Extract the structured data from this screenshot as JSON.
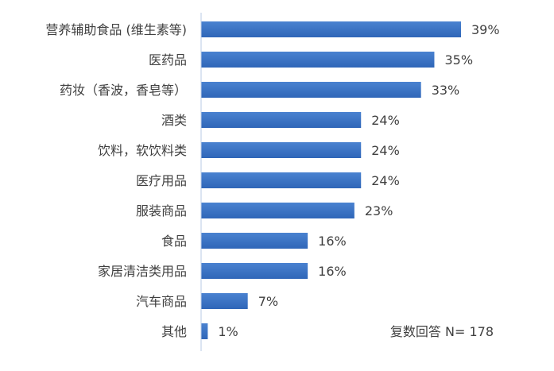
{
  "chart_data": {
    "type": "bar",
    "orientation": "horizontal",
    "categories": [
      "营养辅助食品 (维生素等)",
      "医药品",
      "药妆（香波，香皂等）",
      "酒类",
      "饮料，软饮料类",
      "医疗用品",
      "服装商品",
      "食品",
      "家居清洁类用品",
      "汽车商品",
      "其他"
    ],
    "values": [
      39,
      35,
      33,
      24,
      24,
      24,
      23,
      16,
      16,
      7,
      1
    ],
    "value_suffix": "%",
    "bar_color": "#2f66b8",
    "bar_color_light": "#4a82d0",
    "axis_color": "#b9cbe6",
    "label_color": "#404040",
    "note": "复数回答 N= 178",
    "title": "",
    "xlabel": "",
    "ylabel": "",
    "xlim": [
      0,
      39
    ],
    "grid": false
  }
}
